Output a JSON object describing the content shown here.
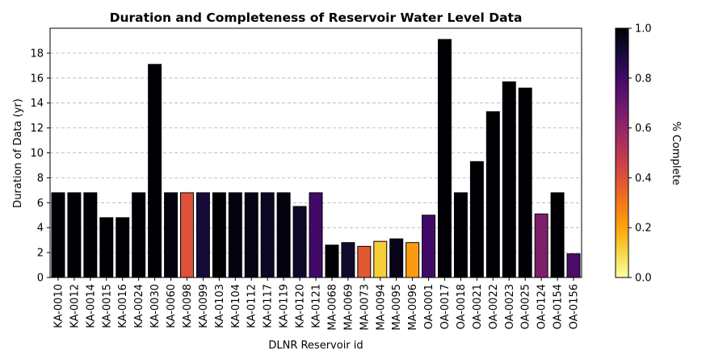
{
  "chart_data": {
    "type": "bar",
    "title": "Duration and Completeness of Reservoir Water Level Data",
    "xlabel": "DLNR Reservoir id",
    "ylabel": "Duration of Data (yr)",
    "ylim": [
      0,
      20
    ],
    "yticks": [
      0,
      2,
      4,
      6,
      8,
      10,
      12,
      14,
      16,
      18
    ],
    "grid": "y-dashed",
    "colormap": "inferno_r",
    "colorbar": {
      "label": "% Complete",
      "range": [
        0.0,
        1.0
      ],
      "ticks": [
        "0.0",
        "0.2",
        "0.4",
        "0.6",
        "0.8",
        "1.0"
      ]
    },
    "categories": [
      "KA-0010",
      "KA-0012",
      "KA-0014",
      "KA-0015",
      "KA-0016",
      "KA-0024",
      "KA-0030",
      "KA-0060",
      "KA-0098",
      "KA-0099",
      "KA-0103",
      "KA-0104",
      "KA-0112",
      "KA-0117",
      "KA-0119",
      "KA-0120",
      "KA-0121",
      "MA-0068",
      "MA-0069",
      "MA-0073",
      "MA-0094",
      "MA-0095",
      "MA-0096",
      "OA-0001",
      "OA-0017",
      "OA-0018",
      "OA-0021",
      "OA-0022",
      "OA-0023",
      "OA-0025",
      "OA-0124",
      "OA-0154",
      "OA-0156"
    ],
    "values": [
      6.8,
      6.8,
      6.8,
      4.8,
      4.8,
      6.8,
      17.1,
      6.8,
      6.8,
      6.8,
      6.8,
      6.8,
      6.8,
      6.8,
      6.8,
      5.7,
      6.8,
      2.6,
      2.8,
      2.5,
      2.9,
      3.1,
      2.8,
      5.0,
      19.1,
      6.8,
      9.3,
      13.3,
      15.7,
      15.2,
      5.1,
      6.8,
      1.9
    ],
    "completeness": [
      1.0,
      1.0,
      1.0,
      1.0,
      1.0,
      1.0,
      1.0,
      0.98,
      0.4,
      0.9,
      1.0,
      0.98,
      0.97,
      0.94,
      0.98,
      0.93,
      0.8,
      1.0,
      0.92,
      0.38,
      0.12,
      0.96,
      0.22,
      0.8,
      1.0,
      1.0,
      1.0,
      1.0,
      1.0,
      1.0,
      0.65,
      1.0,
      0.78
    ]
  }
}
